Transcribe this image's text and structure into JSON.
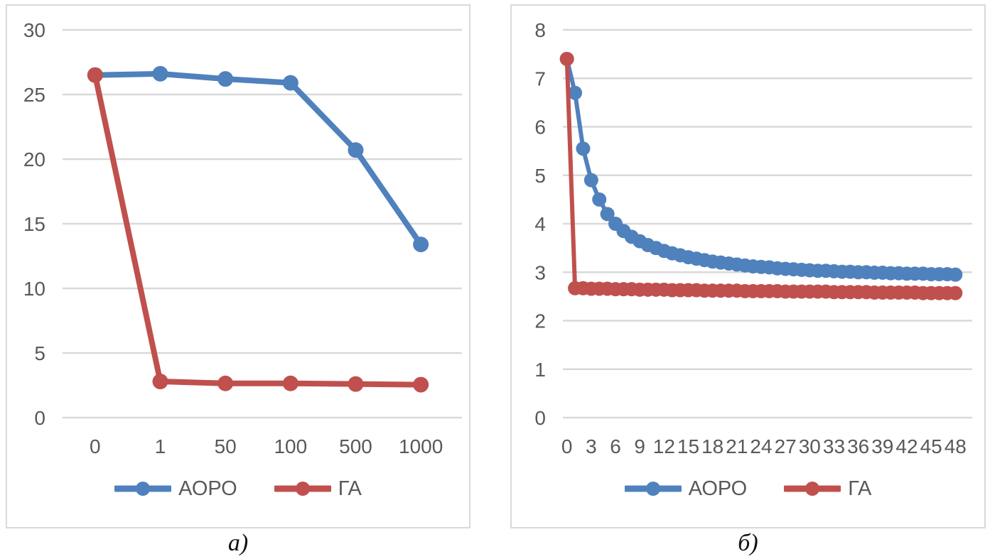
{
  "page": {
    "caption_a": "а)",
    "caption_b": "б)"
  },
  "colors": {
    "series_aoro": "#4F81BD",
    "series_ga": "#C0504D",
    "grid": "#D9D9D9",
    "axis_text": "#595959",
    "panel_border": "#D9D9D9",
    "background": "#FFFFFF"
  },
  "chart_data": [
    {
      "type": "line",
      "caption": "а)",
      "title": "",
      "xlabel": "",
      "ylabel": "",
      "ylim": [
        0,
        30
      ],
      "ytick_step": 5,
      "yticks": [
        30,
        25,
        20,
        15,
        10,
        5,
        0
      ],
      "grid": true,
      "legend_position": "bottom",
      "categories": [
        "0",
        "1",
        "50",
        "100",
        "500",
        "1000"
      ],
      "xtick_label_every": 1,
      "series": [
        {
          "name": "АОРО",
          "color": "#4F81BD",
          "values": [
            26.5,
            26.6,
            26.2,
            25.9,
            20.7,
            13.4
          ]
        },
        {
          "name": "ГА",
          "color": "#C0504D",
          "values": [
            26.5,
            2.8,
            2.65,
            2.65,
            2.6,
            2.55
          ]
        }
      ]
    },
    {
      "type": "line",
      "caption": "б)",
      "title": "",
      "xlabel": "",
      "ylabel": "",
      "ylim": [
        0,
        8
      ],
      "ytick_step": 1,
      "yticks": [
        8,
        7,
        6,
        5,
        4,
        3,
        2,
        1,
        0
      ],
      "grid": true,
      "legend_position": "bottom",
      "categories": [
        "0",
        "1",
        "2",
        "3",
        "4",
        "5",
        "6",
        "7",
        "8",
        "9",
        "10",
        "11",
        "12",
        "13",
        "14",
        "15",
        "16",
        "17",
        "18",
        "19",
        "20",
        "21",
        "22",
        "23",
        "24",
        "25",
        "26",
        "27",
        "28",
        "29",
        "30",
        "31",
        "32",
        "33",
        "34",
        "35",
        "36",
        "37",
        "38",
        "39",
        "40",
        "41",
        "42",
        "43",
        "44",
        "45",
        "46",
        "47",
        "48"
      ],
      "xtick_label_every": 3,
      "series": [
        {
          "name": "АОРО",
          "color": "#4F81BD",
          "values": [
            7.4,
            6.7,
            5.55,
            4.9,
            4.5,
            4.2,
            4.0,
            3.85,
            3.73,
            3.64,
            3.56,
            3.5,
            3.44,
            3.39,
            3.35,
            3.31,
            3.28,
            3.25,
            3.22,
            3.2,
            3.18,
            3.16,
            3.14,
            3.12,
            3.11,
            3.1,
            3.08,
            3.07,
            3.06,
            3.05,
            3.04,
            3.03,
            3.03,
            3.02,
            3.01,
            3.01,
            3.0,
            3.0,
            2.99,
            2.99,
            2.98,
            2.98,
            2.97,
            2.97,
            2.97,
            2.96,
            2.96,
            2.96,
            2.95
          ]
        },
        {
          "name": "ГА",
          "color": "#C0504D",
          "values": [
            7.4,
            2.67,
            2.67,
            2.66,
            2.66,
            2.66,
            2.65,
            2.65,
            2.65,
            2.64,
            2.64,
            2.64,
            2.64,
            2.63,
            2.63,
            2.63,
            2.63,
            2.62,
            2.62,
            2.62,
            2.62,
            2.62,
            2.61,
            2.61,
            2.61,
            2.61,
            2.61,
            2.6,
            2.6,
            2.6,
            2.6,
            2.6,
            2.6,
            2.59,
            2.59,
            2.59,
            2.59,
            2.59,
            2.58,
            2.58,
            2.58,
            2.58,
            2.58,
            2.58,
            2.57,
            2.57,
            2.57,
            2.57,
            2.57
          ]
        }
      ]
    }
  ]
}
